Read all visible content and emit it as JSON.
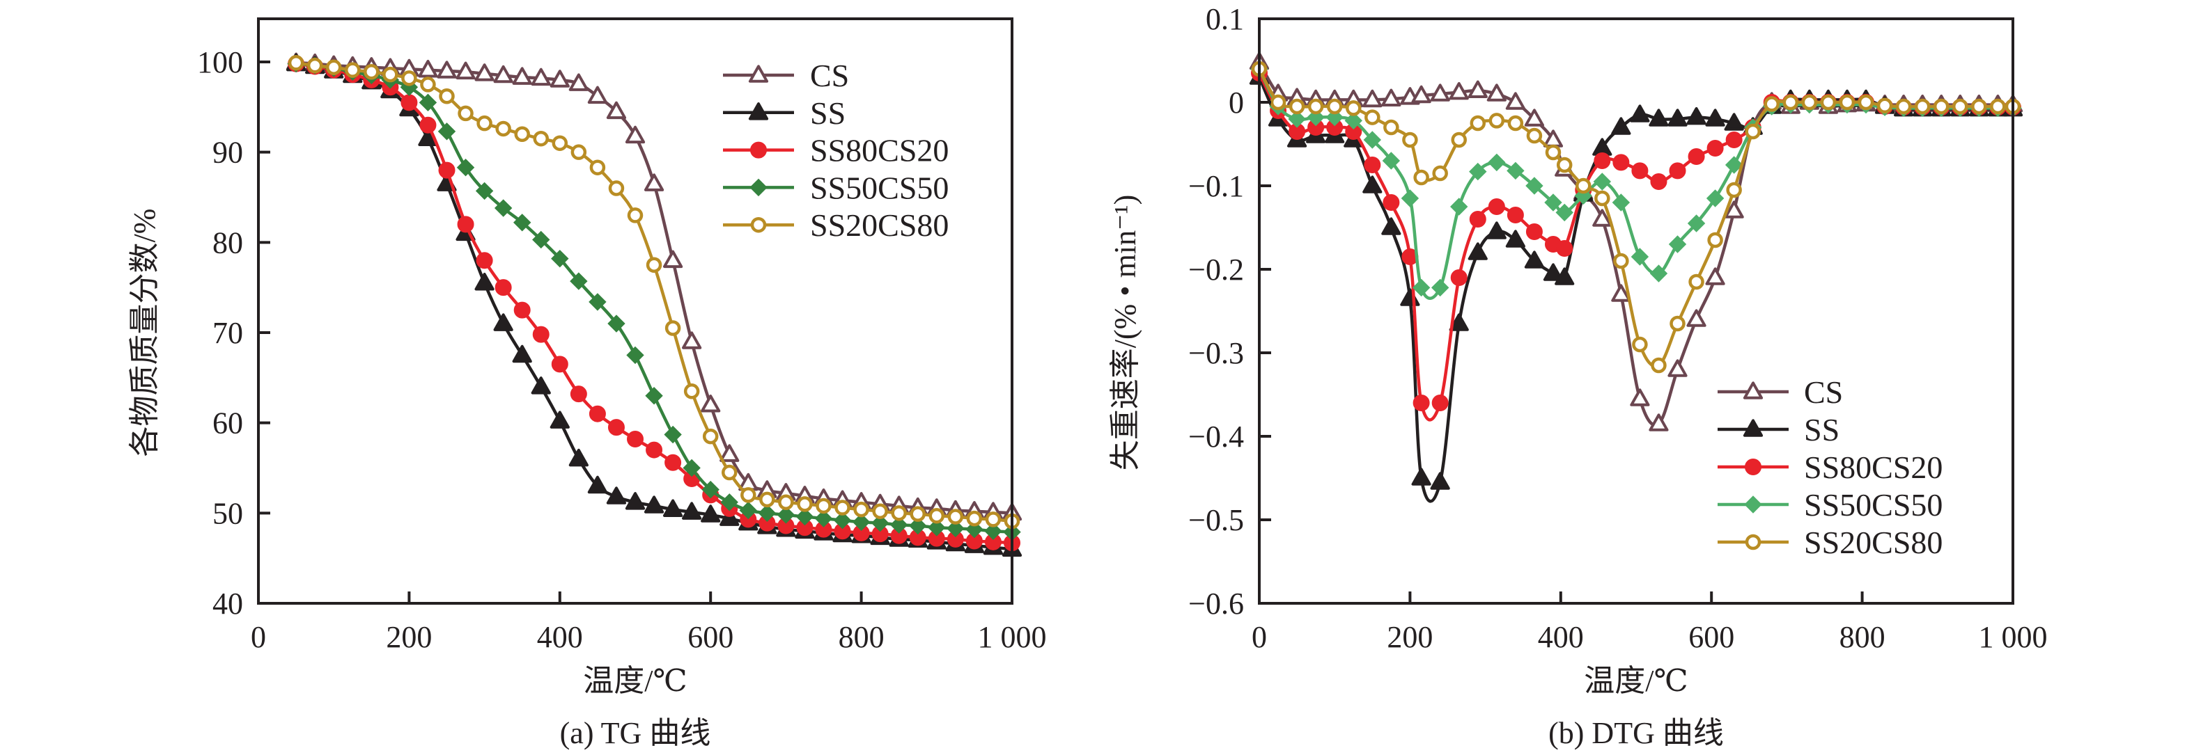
{
  "figure": {
    "captions": [
      "(a) TG 曲线",
      "(b) DTG 曲线"
    ]
  },
  "chart_data": [
    {
      "type": "line",
      "title": "(a) TG 曲线",
      "xlabel": "温度/℃",
      "ylabel": "各物质质量分数/%",
      "xlim": [
        0,
        1000
      ],
      "ylim": [
        40,
        105
      ],
      "xticks": [
        0,
        200,
        400,
        600,
        800,
        1000
      ],
      "xtick_labels": [
        "0",
        "200",
        "400",
        "600",
        "800",
        "1 000"
      ],
      "yticks": [
        40,
        50,
        60,
        70,
        80,
        90,
        100
      ],
      "ytick_labels": [
        "40",
        "50",
        "60",
        "70",
        "80",
        "90",
        "100"
      ],
      "grid": false,
      "legend_position": "top-right",
      "x": [
        50,
        75,
        100,
        125,
        150,
        175,
        200,
        225,
        250,
        275,
        300,
        325,
        350,
        375,
        400,
        425,
        450,
        475,
        500,
        525,
        550,
        575,
        600,
        625,
        650,
        675,
        700,
        725,
        750,
        775,
        800,
        825,
        850,
        875,
        900,
        925,
        950,
        975,
        1000
      ],
      "series": [
        {
          "name": "CS",
          "color": "#6b4650",
          "marker": "triangle-open",
          "values": [
            99.9,
            99.8,
            99.6,
            99.5,
            99.4,
            99.3,
            99.2,
            99.1,
            99.0,
            98.9,
            98.7,
            98.5,
            98.3,
            98.2,
            98.0,
            97.6,
            96.2,
            94.5,
            91.8,
            86.5,
            78.0,
            69.0,
            62.0,
            56.5,
            53.3,
            52.5,
            52.2,
            51.9,
            51.6,
            51.4,
            51.2,
            51.0,
            50.8,
            50.6,
            50.5,
            50.3,
            50.2,
            50.1,
            50.0
          ]
        },
        {
          "name": "SS",
          "color": "#231f20",
          "marker": "triangle-filled",
          "values": [
            99.8,
            99.5,
            99.0,
            98.5,
            97.8,
            96.8,
            94.8,
            91.5,
            86.5,
            81.0,
            75.5,
            71.0,
            67.5,
            64.0,
            60.2,
            56.0,
            53.0,
            51.8,
            51.2,
            50.8,
            50.4,
            50.1,
            49.8,
            49.4,
            48.9,
            48.5,
            48.2,
            48.0,
            47.8,
            47.6,
            47.5,
            47.3,
            47.1,
            47.0,
            46.8,
            46.6,
            46.4,
            46.2,
            46.0
          ]
        },
        {
          "name": "SS80CS20",
          "color": "#e8232a",
          "marker": "circle-filled",
          "values": [
            99.8,
            99.5,
            99.1,
            98.6,
            98.0,
            97.2,
            95.5,
            93.0,
            88.0,
            82.0,
            78.0,
            75.0,
            72.5,
            69.8,
            66.5,
            63.2,
            61.0,
            59.5,
            58.2,
            57.0,
            55.6,
            53.8,
            52.0,
            50.5,
            49.3,
            48.9,
            48.6,
            48.4,
            48.2,
            48.0,
            47.8,
            47.7,
            47.5,
            47.3,
            47.2,
            47.1,
            46.9,
            46.8,
            46.7
          ]
        },
        {
          "name": "SS50CS50",
          "color": "#34823e",
          "marker": "diamond-filled",
          "values": [
            99.8,
            99.6,
            99.3,
            98.9,
            98.5,
            98.0,
            97.2,
            95.5,
            92.3,
            88.3,
            85.7,
            83.8,
            82.2,
            80.3,
            78.2,
            75.7,
            73.4,
            71.0,
            67.5,
            63.0,
            58.7,
            55.0,
            52.6,
            51.2,
            50.3,
            50.0,
            49.8,
            49.6,
            49.4,
            49.2,
            49.0,
            48.9,
            48.7,
            48.6,
            48.4,
            48.3,
            48.2,
            48.0,
            47.9
          ]
        },
        {
          "name": "SS20CS80",
          "color": "#b98d24",
          "marker": "circle-open",
          "values": [
            99.9,
            99.6,
            99.4,
            99.1,
            98.9,
            98.6,
            98.2,
            97.5,
            96.2,
            94.3,
            93.2,
            92.6,
            92.0,
            91.5,
            91.0,
            90.0,
            88.3,
            86.0,
            83.0,
            77.5,
            70.5,
            63.5,
            58.5,
            54.5,
            52.0,
            51.5,
            51.2,
            51.0,
            50.8,
            50.6,
            50.4,
            50.2,
            50.0,
            49.9,
            49.7,
            49.6,
            49.4,
            49.3,
            49.1
          ]
        }
      ]
    },
    {
      "type": "line",
      "title": "(b) DTG 曲线",
      "xlabel": "温度/℃",
      "ylabel": "失重速率/(% • min⁻¹)",
      "xlim": [
        0,
        1000
      ],
      "ylim": [
        -0.6,
        0.1
      ],
      "xticks": [
        0,
        200,
        400,
        600,
        800,
        1000
      ],
      "xtick_labels": [
        "0",
        "200",
        "400",
        "600",
        "800",
        "1 000"
      ],
      "yticks": [
        -0.6,
        -0.5,
        -0.4,
        -0.3,
        -0.2,
        -0.1,
        0,
        0.1
      ],
      "ytick_labels": [
        "−0.6",
        "−0.5",
        "−0.4",
        "−0.3",
        "−0.2",
        "−0.1",
        "0",
        "0.1"
      ],
      "grid": false,
      "legend_position": "bottom-right",
      "x": [
        0,
        25,
        50,
        75,
        100,
        125,
        150,
        175,
        200,
        215,
        240,
        265,
        290,
        315,
        340,
        365,
        390,
        405,
        430,
        455,
        480,
        505,
        530,
        555,
        580,
        605,
        630,
        655,
        680,
        705,
        730,
        755,
        780,
        805,
        830,
        855,
        880,
        905,
        930,
        955,
        980,
        1000
      ],
      "series": [
        {
          "name": "CS",
          "color": "#6b4650",
          "marker": "triangle-open",
          "values": [
            0.048,
            0.01,
            0.005,
            0.003,
            0.003,
            0.003,
            0.003,
            0.004,
            0.006,
            0.008,
            0.01,
            0.012,
            0.014,
            0.01,
            0.0,
            -0.02,
            -0.045,
            -0.08,
            -0.108,
            -0.14,
            -0.23,
            -0.355,
            -0.385,
            -0.32,
            -0.26,
            -0.21,
            -0.13,
            -0.03,
            0.0,
            -0.005,
            0.0,
            -0.005,
            -0.003,
            -0.002,
            -0.003,
            -0.003,
            -0.003,
            -0.003,
            -0.003,
            -0.003,
            -0.003,
            -0.003
          ]
        },
        {
          "name": "SS",
          "color": "#231f20",
          "marker": "triangle-filled",
          "values": [
            0.03,
            -0.02,
            -0.045,
            -0.04,
            -0.04,
            -0.045,
            -0.1,
            -0.15,
            -0.235,
            -0.45,
            -0.455,
            -0.265,
            -0.18,
            -0.155,
            -0.165,
            -0.19,
            -0.205,
            -0.21,
            -0.11,
            -0.055,
            -0.03,
            -0.015,
            -0.02,
            -0.02,
            -0.018,
            -0.02,
            -0.025,
            -0.03,
            -0.005,
            0.003,
            0.003,
            0.003,
            0.003,
            0.003,
            -0.005,
            -0.008,
            -0.008,
            -0.008,
            -0.008,
            -0.008,
            -0.008,
            -0.008
          ]
        },
        {
          "name": "SS80CS20",
          "color": "#e8232a",
          "marker": "circle-filled",
          "values": [
            0.035,
            -0.01,
            -0.035,
            -0.03,
            -0.03,
            -0.035,
            -0.075,
            -0.12,
            -0.185,
            -0.36,
            -0.36,
            -0.21,
            -0.14,
            -0.125,
            -0.135,
            -0.155,
            -0.17,
            -0.175,
            -0.105,
            -0.07,
            -0.072,
            -0.082,
            -0.095,
            -0.082,
            -0.065,
            -0.055,
            -0.045,
            -0.03,
            0.0,
            0.0,
            0.0,
            0.0,
            0.0,
            0.0,
            -0.005,
            -0.006,
            -0.006,
            -0.006,
            -0.006,
            -0.006,
            -0.006,
            -0.006
          ]
        },
        {
          "name": "SS50CS50",
          "color": "#4daf6a",
          "marker": "diamond-filled",
          "values": [
            0.04,
            -0.005,
            -0.02,
            -0.018,
            -0.018,
            -0.022,
            -0.045,
            -0.07,
            -0.115,
            -0.222,
            -0.222,
            -0.125,
            -0.083,
            -0.072,
            -0.082,
            -0.1,
            -0.12,
            -0.132,
            -0.112,
            -0.095,
            -0.12,
            -0.185,
            -0.205,
            -0.17,
            -0.145,
            -0.115,
            -0.075,
            -0.03,
            -0.005,
            -0.003,
            -0.003,
            -0.003,
            -0.003,
            -0.003,
            -0.006,
            -0.007,
            -0.007,
            -0.007,
            -0.007,
            -0.007,
            -0.007,
            -0.007
          ]
        },
        {
          "name": "SS20CS80",
          "color": "#b98d24",
          "marker": "circle-open",
          "values": [
            0.04,
            0.0,
            -0.005,
            -0.005,
            -0.005,
            -0.007,
            -0.018,
            -0.03,
            -0.045,
            -0.09,
            -0.085,
            -0.045,
            -0.025,
            -0.022,
            -0.025,
            -0.04,
            -0.06,
            -0.075,
            -0.1,
            -0.115,
            -0.19,
            -0.29,
            -0.315,
            -0.265,
            -0.215,
            -0.165,
            -0.105,
            -0.035,
            -0.002,
            0.0,
            0.0,
            0.0,
            0.0,
            0.0,
            -0.004,
            -0.005,
            -0.005,
            -0.005,
            -0.005,
            -0.005,
            -0.005,
            -0.005
          ]
        }
      ]
    }
  ]
}
